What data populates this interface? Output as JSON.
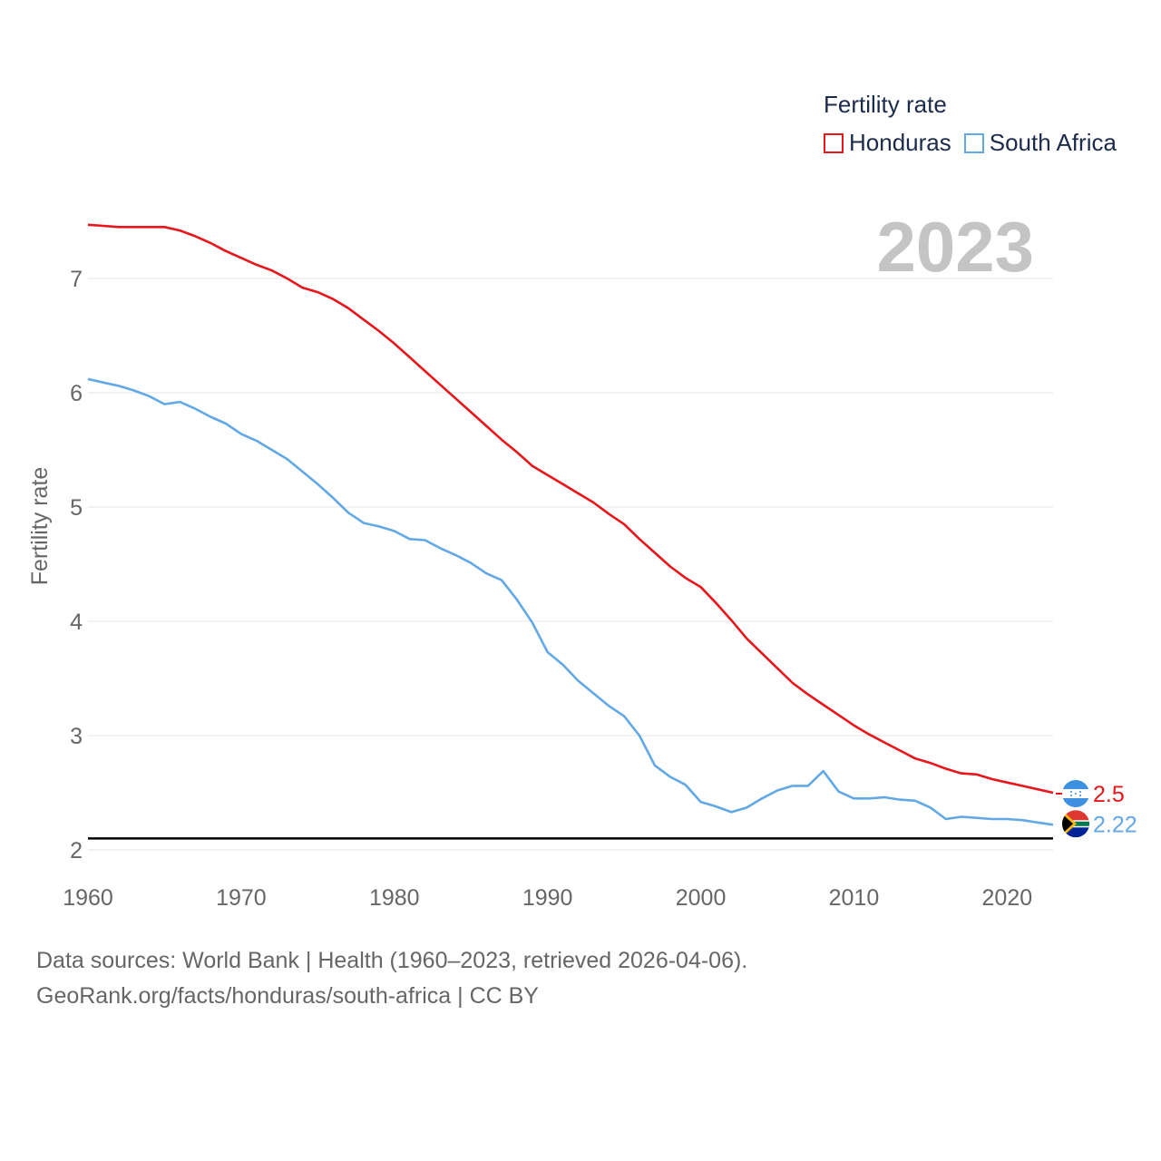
{
  "legend": {
    "title": "Fertility rate",
    "items": [
      {
        "label": "Honduras",
        "color": "#e8151b"
      },
      {
        "label": "South Africa",
        "color": "#62a8e5"
      }
    ]
  },
  "source": {
    "line1": "Data sources: World Bank | Health (1960–2023, retrieved 2026-04-06).",
    "line2": "GeoRank.org/facts/honduras/south-africa | CC BY"
  },
  "chart_data": {
    "type": "line",
    "title": "Fertility rate",
    "ylabel": "Fertility rate",
    "xlabel": "",
    "year_watermark": "2023",
    "xlim": [
      1960,
      2023
    ],
    "ylim": [
      2,
      7.5
    ],
    "x_ticks": [
      1960,
      1970,
      1980,
      1990,
      2000,
      2010,
      2020
    ],
    "y_ticks": [
      2,
      3,
      4,
      5,
      6,
      7
    ],
    "reference_line": 2.1,
    "grid": true,
    "legend_position": "top-right",
    "x": [
      1960,
      1961,
      1962,
      1963,
      1964,
      1965,
      1966,
      1967,
      1968,
      1969,
      1970,
      1971,
      1972,
      1973,
      1974,
      1975,
      1976,
      1977,
      1978,
      1979,
      1980,
      1981,
      1982,
      1983,
      1984,
      1985,
      1986,
      1987,
      1988,
      1989,
      1990,
      1991,
      1992,
      1993,
      1994,
      1995,
      1996,
      1997,
      1998,
      1999,
      2000,
      2001,
      2002,
      2003,
      2004,
      2005,
      2006,
      2007,
      2008,
      2009,
      2010,
      2011,
      2012,
      2013,
      2014,
      2015,
      2016,
      2017,
      2018,
      2019,
      2020,
      2021,
      2022,
      2023
    ],
    "series": [
      {
        "name": "Honduras",
        "color": "#e8151b",
        "end_label": "2.5",
        "values": [
          7.47,
          7.46,
          7.45,
          7.45,
          7.45,
          7.45,
          7.42,
          7.37,
          7.31,
          7.24,
          7.18,
          7.12,
          7.07,
          7.0,
          6.92,
          6.88,
          6.82,
          6.74,
          6.64,
          6.54,
          6.43,
          6.31,
          6.19,
          6.07,
          5.95,
          5.83,
          5.71,
          5.59,
          5.48,
          5.36,
          5.28,
          5.2,
          5.12,
          5.04,
          4.94,
          4.85,
          4.72,
          4.6,
          4.48,
          4.38,
          4.3,
          4.16,
          4.01,
          3.85,
          3.72,
          3.59,
          3.46,
          3.36,
          3.27,
          3.18,
          3.09,
          3.01,
          2.94,
          2.87,
          2.8,
          2.76,
          2.71,
          2.67,
          2.66,
          2.62,
          2.59,
          2.56,
          2.53,
          2.5
        ]
      },
      {
        "name": "South Africa",
        "color": "#62a8e5",
        "end_label": "2.22",
        "values": [
          6.12,
          6.09,
          6.06,
          6.02,
          5.97,
          5.9,
          5.92,
          5.86,
          5.79,
          5.73,
          5.64,
          5.58,
          5.5,
          5.42,
          5.31,
          5.2,
          5.08,
          4.95,
          4.86,
          4.83,
          4.79,
          4.72,
          4.71,
          4.64,
          4.58,
          4.51,
          4.42,
          4.36,
          4.19,
          3.99,
          3.73,
          3.62,
          3.48,
          3.37,
          3.26,
          3.17,
          3.0,
          2.74,
          2.64,
          2.57,
          2.42,
          2.38,
          2.33,
          2.37,
          2.45,
          2.52,
          2.56,
          2.56,
          2.69,
          2.51,
          2.45,
          2.45,
          2.46,
          2.44,
          2.43,
          2.37,
          2.27,
          2.29,
          2.28,
          2.27,
          2.27,
          2.26,
          2.24,
          2.22
        ]
      }
    ]
  }
}
